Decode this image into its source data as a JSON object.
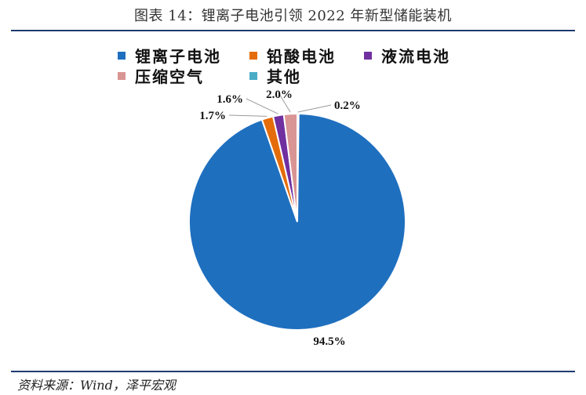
{
  "header": {
    "title": "图表 14：锂离子电池引领 2022 年新型储能装机"
  },
  "footer": {
    "source": "资料来源：Wind，泽平宏观"
  },
  "chart_data": {
    "type": "pie",
    "title": "图表 14：锂离子电池引领 2022 年新型储能装机",
    "legend_position": "top",
    "series": [
      {
        "name": "锂离子电池",
        "value": 94.5,
        "label": "94.5%",
        "color": "#1F6FBF"
      },
      {
        "name": "铅酸电池",
        "value": 1.7,
        "label": "1.7%",
        "color": "#E46C0A"
      },
      {
        "name": "液流电池",
        "value": 1.6,
        "label": "1.6%",
        "color": "#7030A0"
      },
      {
        "name": "压缩空气",
        "value": 2.0,
        "label": "2.0%",
        "color": "#D99594"
      },
      {
        "name": "其他",
        "value": 0.2,
        "label": "0.2%",
        "color": "#4BACC6"
      }
    ]
  }
}
